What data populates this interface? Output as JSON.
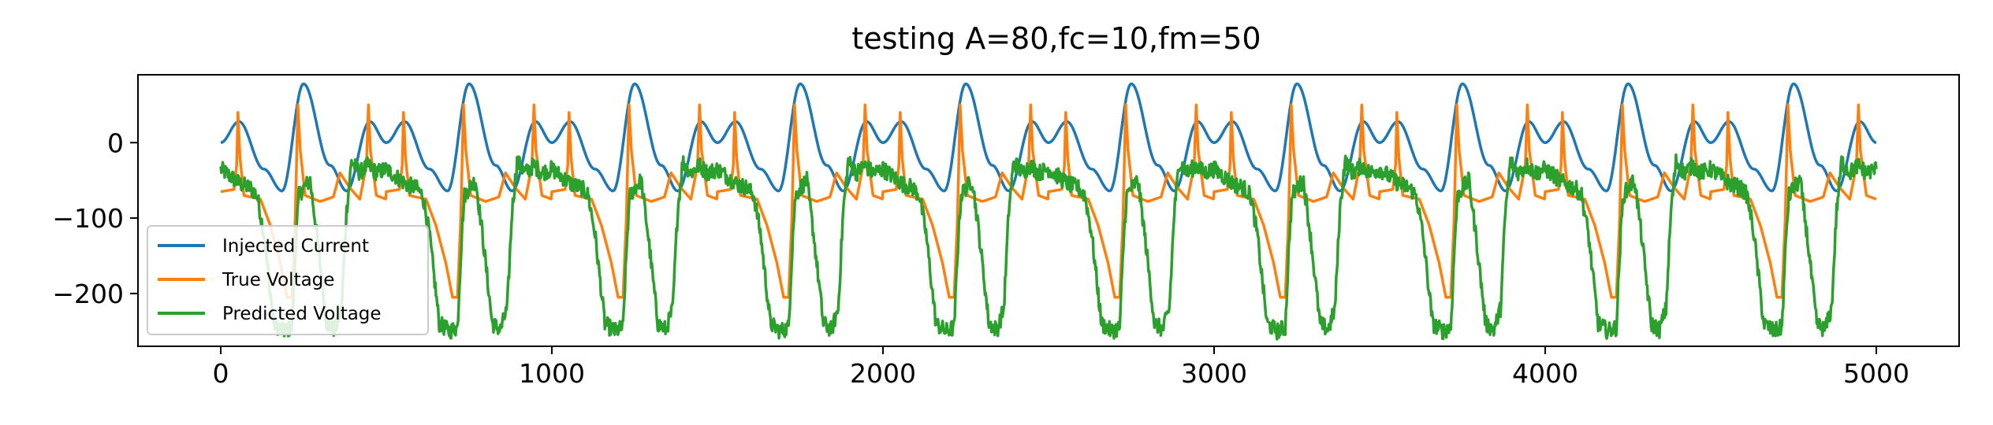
{
  "chart_data": {
    "type": "line",
    "title": "testing A=80,fc=10,fm=50",
    "xlabel": "",
    "ylabel": "",
    "xlim": [
      -250,
      5250
    ],
    "ylim": [
      -270,
      90
    ],
    "xticks": [
      0,
      1000,
      2000,
      3000,
      4000,
      5000
    ],
    "xtick_labels": [
      "0",
      "1000",
      "2000",
      "3000",
      "4000",
      "5000"
    ],
    "yticks": [
      0,
      -100,
      -200
    ],
    "ytick_labels": [
      "0",
      "−100",
      "−200"
    ],
    "grid": false,
    "legend": {
      "position": "lower-left"
    },
    "series": [
      {
        "name": "Injected Current",
        "color": "#1f77b4",
        "model": "A*sin(2*pi*fc*t)*(1+sin(2*pi*fm*t))/2 approx; period 500 samples, peak 78, trough -65",
        "x_range": [
          0,
          5000
        ],
        "period": 500,
        "key_points": [
          [
            0,
            0
          ],
          [
            55,
            28
          ],
          [
            130,
            -35
          ],
          [
            185,
            -64
          ],
          [
            250,
            78
          ],
          [
            330,
            -30
          ],
          [
            380,
            -64
          ],
          [
            450,
            28
          ],
          [
            500,
            0
          ]
        ]
      },
      {
        "name": "True Voltage",
        "color": "#ff7f0e",
        "x_range": [
          0,
          5000
        ],
        "period": 500,
        "key_points": [
          [
            0,
            -65
          ],
          [
            40,
            -62
          ],
          [
            48,
            -30
          ],
          [
            52,
            40
          ],
          [
            58,
            -20
          ],
          [
            70,
            -70
          ],
          [
            120,
            -75
          ],
          [
            150,
            -110
          ],
          [
            180,
            -160
          ],
          [
            200,
            -205
          ],
          [
            215,
            -205
          ],
          [
            225,
            -100
          ],
          [
            233,
            50
          ],
          [
            240,
            -10
          ],
          [
            255,
            -70
          ],
          [
            300,
            -78
          ],
          [
            340,
            -72
          ],
          [
            360,
            -40
          ],
          [
            390,
            -60
          ],
          [
            420,
            -75
          ],
          [
            440,
            -30
          ],
          [
            446,
            50
          ],
          [
            452,
            -10
          ],
          [
            470,
            -70
          ],
          [
            500,
            -75
          ]
        ]
      },
      {
        "name": "Predicted Voltage",
        "color": "#2ca02c",
        "x_range": [
          0,
          5000
        ],
        "period": 500,
        "key_points": [
          [
            0,
            -35
          ],
          [
            30,
            -45
          ],
          [
            60,
            -55
          ],
          [
            90,
            -60
          ],
          [
            110,
            -70
          ],
          [
            130,
            -120
          ],
          [
            160,
            -240
          ],
          [
            190,
            -250
          ],
          [
            215,
            -245
          ],
          [
            228,
            -120
          ],
          [
            236,
            -70
          ],
          [
            250,
            -60
          ],
          [
            270,
            -50
          ],
          [
            290,
            -120
          ],
          [
            320,
            -240
          ],
          [
            345,
            -248
          ],
          [
            365,
            -220
          ],
          [
            380,
            -90
          ],
          [
            395,
            -25
          ],
          [
            420,
            -40
          ],
          [
            445,
            -30
          ],
          [
            470,
            -40
          ],
          [
            500,
            -35
          ]
        ]
      }
    ]
  }
}
